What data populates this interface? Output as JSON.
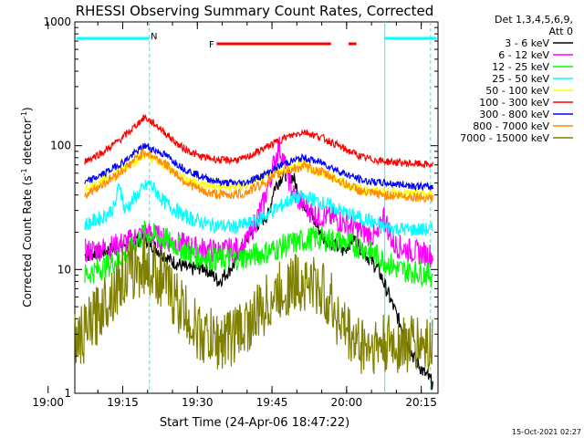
{
  "chart_data": {
    "type": "line",
    "title": "RHESSI Observing Summary Count Rates, Corrected",
    "xlabel": "Start Time (24-Apr-06 18:47:22)",
    "ylabel": "Corrected Count Rate (s⁻¹ detector⁻¹)",
    "ylabel_parts": [
      "Corrected Count Rate (s",
      "-1",
      " detector",
      "-1",
      ")"
    ],
    "xlim_minutes": [
      18.0,
      91.0
    ],
    "ylim": [
      1,
      1000
    ],
    "yscale": "log",
    "x_tick_labels": [
      "19:00",
      "19:15",
      "19:30",
      "19:45",
      "20:00",
      "20:15"
    ],
    "x_tick_minutes": [
      12.63,
      27.63,
      42.63,
      57.63,
      72.63,
      87.63
    ],
    "y_tick_labels": [
      "1",
      "10",
      "100",
      "1000"
    ],
    "y_tick_values": [
      1,
      10,
      100,
      1000
    ],
    "legend_header": [
      "Det 1,3,4,5,6,9,",
      "Att 0"
    ],
    "legend_placement": "right",
    "series": [
      {
        "name": "3 - 6 keV",
        "color": "#000000",
        "points": [
          [
            20,
            13
          ],
          [
            24,
            14
          ],
          [
            28,
            16
          ],
          [
            32,
            18
          ],
          [
            37,
            12
          ],
          [
            41,
            10
          ],
          [
            44,
            10.5
          ],
          [
            47,
            8
          ],
          [
            50,
            11
          ],
          [
            52,
            16
          ],
          [
            54,
            22
          ],
          [
            57,
            28
          ],
          [
            58,
            45
          ],
          [
            60,
            60
          ],
          [
            62,
            55
          ],
          [
            63,
            40
          ],
          [
            65,
            30
          ],
          [
            68,
            18
          ],
          [
            70,
            16
          ],
          [
            72,
            14
          ],
          [
            73,
            16
          ],
          [
            74,
            18
          ],
          [
            76,
            14
          ],
          [
            79,
            10
          ],
          [
            80,
            8
          ],
          [
            83,
            4
          ],
          [
            86,
            2
          ],
          [
            88,
            1.5
          ],
          [
            90,
            1.2
          ]
        ]
      },
      {
        "name": "6 - 12 keV",
        "color": "#ff00ff",
        "points": [
          [
            20,
            14
          ],
          [
            25,
            15
          ],
          [
            29,
            17
          ],
          [
            32,
            20
          ],
          [
            37,
            17
          ],
          [
            42,
            15
          ],
          [
            47,
            14
          ],
          [
            52,
            15
          ],
          [
            56,
            35
          ],
          [
            59,
            100
          ],
          [
            62,
            40
          ],
          [
            66,
            28
          ],
          [
            70,
            26
          ],
          [
            73,
            23
          ],
          [
            76,
            20
          ],
          [
            79,
            18
          ],
          [
            80,
            28
          ],
          [
            82,
            16
          ],
          [
            86,
            14
          ],
          [
            90,
            13
          ]
        ]
      },
      {
        "name": "12 - 25 keV",
        "color": "#00ff00",
        "points": [
          [
            20,
            9
          ],
          [
            25,
            11
          ],
          [
            29,
            14
          ],
          [
            32,
            20
          ],
          [
            37,
            17
          ],
          [
            42,
            13
          ],
          [
            47,
            12
          ],
          [
            52,
            12.5
          ],
          [
            57,
            14
          ],
          [
            61,
            16
          ],
          [
            66,
            18
          ],
          [
            71,
            17
          ],
          [
            76,
            15
          ],
          [
            80,
            12
          ],
          [
            83,
            10
          ],
          [
            87,
            9.5
          ],
          [
            90,
            9
          ]
        ]
      },
      {
        "name": "25 - 50 keV",
        "color": "#00ffff",
        "points": [
          [
            20,
            23
          ],
          [
            24,
            27
          ],
          [
            26,
            32
          ],
          [
            27,
            50
          ],
          [
            28,
            30
          ],
          [
            31,
            42
          ],
          [
            33,
            50
          ],
          [
            36,
            35
          ],
          [
            40,
            27
          ],
          [
            45,
            23
          ],
          [
            50,
            22
          ],
          [
            54,
            24
          ],
          [
            58,
            30
          ],
          [
            62,
            38
          ],
          [
            65,
            38
          ],
          [
            69,
            33
          ],
          [
            73,
            28
          ],
          [
            77,
            25
          ],
          [
            80,
            22
          ],
          [
            85,
            21
          ],
          [
            90,
            21
          ]
        ]
      },
      {
        "name": "50 - 100 keV",
        "color": "#ffff00",
        "points": [
          [
            20,
            45
          ],
          [
            25,
            55
          ],
          [
            29,
            70
          ],
          [
            32,
            85
          ],
          [
            36,
            70
          ],
          [
            40,
            55
          ],
          [
            44,
            48
          ],
          [
            48,
            46
          ],
          [
            52,
            47
          ],
          [
            56,
            55
          ],
          [
            60,
            65
          ],
          [
            64,
            70
          ],
          [
            68,
            60
          ],
          [
            72,
            50
          ],
          [
            76,
            44
          ],
          [
            80,
            42
          ],
          [
            85,
            41
          ],
          [
            90,
            40
          ]
        ]
      },
      {
        "name": "100 - 300 keV",
        "color": "#ff0000",
        "points": [
          [
            20,
            75
          ],
          [
            24,
            90
          ],
          [
            28,
            120
          ],
          [
            32,
            170
          ],
          [
            35,
            140
          ],
          [
            39,
            100
          ],
          [
            43,
            82
          ],
          [
            48,
            76
          ],
          [
            52,
            78
          ],
          [
            56,
            95
          ],
          [
            60,
            115
          ],
          [
            64,
            130
          ],
          [
            68,
            115
          ],
          [
            72,
            95
          ],
          [
            76,
            80
          ],
          [
            80,
            75
          ],
          [
            85,
            72
          ],
          [
            90,
            70
          ]
        ]
      },
      {
        "name": "300 - 800 keV",
        "color": "#0000ff",
        "points": [
          [
            20,
            50
          ],
          [
            24,
            60
          ],
          [
            28,
            75
          ],
          [
            32,
            100
          ],
          [
            36,
            85
          ],
          [
            40,
            65
          ],
          [
            44,
            55
          ],
          [
            48,
            50
          ],
          [
            52,
            50
          ],
          [
            56,
            58
          ],
          [
            60,
            72
          ],
          [
            64,
            80
          ],
          [
            68,
            72
          ],
          [
            72,
            60
          ],
          [
            76,
            52
          ],
          [
            80,
            50
          ],
          [
            85,
            48
          ],
          [
            90,
            46
          ]
        ]
      },
      {
        "name": "800 - 7000 keV",
        "color": "#ff8c00",
        "points": [
          [
            20,
            40
          ],
          [
            24,
            50
          ],
          [
            28,
            65
          ],
          [
            32,
            90
          ],
          [
            36,
            72
          ],
          [
            40,
            52
          ],
          [
            44,
            42
          ],
          [
            48,
            40
          ],
          [
            52,
            41
          ],
          [
            56,
            50
          ],
          [
            60,
            62
          ],
          [
            64,
            68
          ],
          [
            68,
            60
          ],
          [
            72,
            50
          ],
          [
            76,
            42
          ],
          [
            80,
            40
          ],
          [
            85,
            39
          ],
          [
            90,
            38
          ]
        ]
      },
      {
        "name": "7000 - 15000 keV",
        "color": "#808000",
        "points": [
          [
            18,
            2.6
          ],
          [
            20,
            3
          ],
          [
            22,
            4
          ],
          [
            24,
            5.5
          ],
          [
            26,
            7
          ],
          [
            28,
            9
          ],
          [
            32,
            11
          ],
          [
            35,
            9
          ],
          [
            38,
            6
          ],
          [
            41,
            4
          ],
          [
            43,
            3
          ],
          [
            47,
            2.6
          ],
          [
            50,
            3
          ],
          [
            54,
            4
          ],
          [
            57,
            5.5
          ],
          [
            60,
            7
          ],
          [
            63,
            8
          ],
          [
            66,
            7.5
          ],
          [
            69,
            6
          ],
          [
            71,
            4
          ],
          [
            73,
            3
          ],
          [
            75,
            2.5
          ],
          [
            78,
            2.4
          ],
          [
            84,
            2.5
          ],
          [
            90,
            2.5
          ]
        ]
      }
    ],
    "annotations": [
      {
        "label": "N",
        "color": "#00ffff",
        "x_minutes": 33.0
      },
      {
        "label": "F",
        "color": "#ff0000",
        "x_minutes": 45.5
      }
    ]
  },
  "footer": {
    "timestamp": "15-Oct-2021 02:27"
  }
}
